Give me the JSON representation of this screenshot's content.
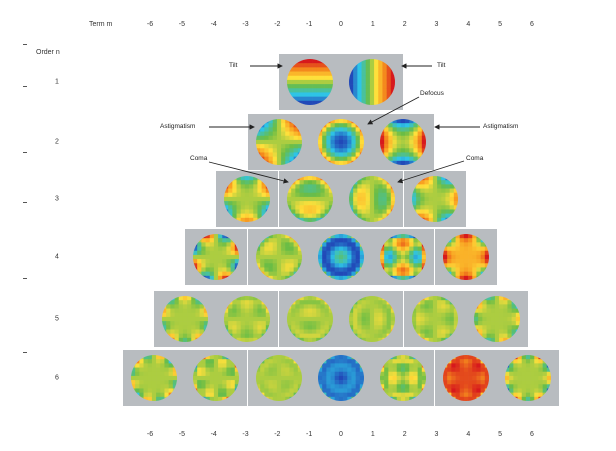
{
  "header": {
    "terms_label": "Term m",
    "order_label": "Order n"
  },
  "m_values": [
    "-6",
    "-5",
    "-4",
    "-3",
    "-2",
    "-1",
    "0",
    "1",
    "2",
    "3",
    "4",
    "5",
    "6"
  ],
  "orders": [
    "1",
    "2",
    "3",
    "4",
    "5",
    "6"
  ],
  "annotations": {
    "tilt_left": "Tilt",
    "tilt_right": "Tilt",
    "defocus": "Defocus",
    "astig_left": "Astigmatism",
    "astig_right": "Astigmatism",
    "coma_left": "Coma",
    "coma_right": "Coma"
  },
  "colors": {
    "tile_bg": "#b8bcc0",
    "red": "#d7191c",
    "orange": "#f7941d",
    "yellow": "#fee03b",
    "green": "#6abd45",
    "cyan": "#2ec4e6",
    "blue": "#2149b8"
  }
}
